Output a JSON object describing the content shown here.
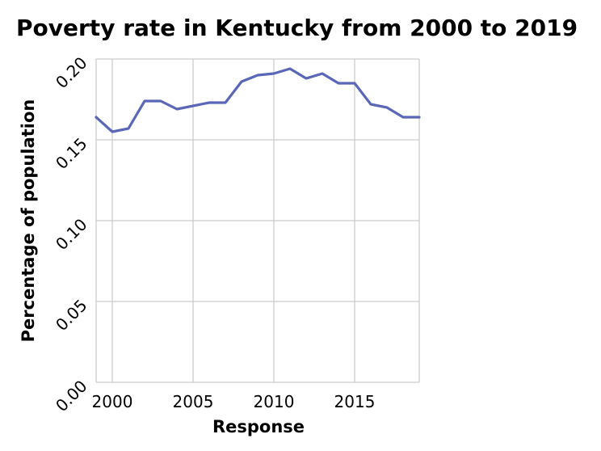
{
  "chart_data": {
    "type": "line",
    "title": "Poverty rate in Kentucky from 2000 to 2019",
    "xlabel": "Response",
    "ylabel": "Percentage of population",
    "xlim": [
      1999,
      2019
    ],
    "ylim": [
      0,
      0.2
    ],
    "xticks": [
      2000,
      2005,
      2010,
      2015
    ],
    "xtick_labels": [
      "2000",
      "2005",
      "2010",
      "2015"
    ],
    "yticks": [
      0,
      0.05,
      0.1,
      0.15,
      0.2
    ],
    "ytick_labels": [
      "0.00",
      "0.05",
      "0.10",
      "0.15",
      "0.20"
    ],
    "grid": true,
    "line_color": "#5a67b8",
    "series": [
      {
        "x": [
          1999,
          2000,
          2001,
          2002,
          2003,
          2004,
          2005,
          2006,
          2007,
          2008,
          2009,
          2010,
          2011,
          2012,
          2013,
          2014,
          2015,
          2016,
          2017,
          2018,
          2019
        ],
        "values": [
          0.164,
          0.155,
          0.157,
          0.174,
          0.174,
          0.169,
          0.171,
          0.173,
          0.173,
          0.186,
          0.19,
          0.191,
          0.194,
          0.188,
          0.191,
          0.185,
          0.185,
          0.172,
          0.17,
          0.164,
          0.164
        ]
      }
    ]
  }
}
